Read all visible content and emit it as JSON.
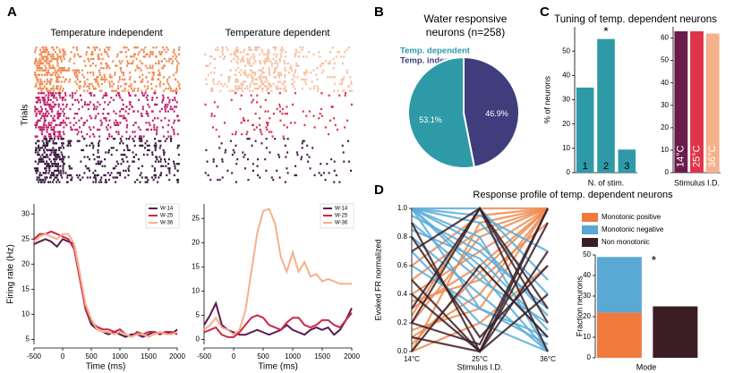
{
  "panel_labels": [
    "A",
    "B",
    "C",
    "D"
  ],
  "chart_data": [
    {
      "type": "raster",
      "title": "Temperature independent",
      "ylabel": "Trials",
      "colors": [
        "#f08a50",
        "#c0206a",
        "#3a1a40"
      ]
    },
    {
      "type": "raster",
      "title": "Temperature dependent",
      "colors": [
        "#f6c0a0",
        "#d83050",
        "#4a1a4a"
      ]
    },
    {
      "type": "line",
      "xlabel": "Time (ms)",
      "ylabel": "Firing rate (Hz)",
      "x": [
        -500,
        -400,
        -300,
        -200,
        -100,
        0,
        100,
        200,
        300,
        400,
        500,
        600,
        700,
        800,
        900,
        1000,
        1100,
        1200,
        1300,
        1400,
        1500,
        1600,
        1700,
        1800,
        1900,
        2000
      ],
      "xlim": [
        -500,
        2000
      ],
      "xticks": [
        -500,
        0,
        500,
        1000,
        1500,
        2000
      ],
      "ylim": [
        4,
        32
      ],
      "yticks": [
        5,
        10,
        15,
        20,
        25,
        30
      ],
      "series": [
        {
          "name": "W-14",
          "color": "#5a1a50",
          "values": [
            24,
            24.5,
            25,
            24.5,
            23.5,
            25,
            24.5,
            24,
            18,
            11,
            8,
            7,
            6.5,
            6,
            6.5,
            6,
            5.5,
            6,
            6,
            5.5,
            6,
            6.5,
            6,
            6.5,
            6,
            7
          ]
        },
        {
          "name": "W-25",
          "color": "#d0264a",
          "values": [
            25,
            26,
            26,
            26.5,
            26,
            25.5,
            25,
            23,
            17,
            11,
            8.5,
            7.5,
            7,
            7,
            6.5,
            7,
            6,
            5.5,
            6.5,
            6,
            6.5,
            6.5,
            6,
            6.5,
            6.5,
            6
          ]
        },
        {
          "name": "W-36",
          "color": "#f6b08a",
          "values": [
            24.5,
            25.5,
            26,
            25.5,
            25,
            26,
            26,
            24,
            18,
            12,
            9,
            7,
            6.5,
            6.5,
            6,
            6.5,
            6,
            5.5,
            6,
            6,
            5.5,
            6,
            6.5,
            6,
            6,
            6.5
          ]
        }
      ]
    },
    {
      "type": "line",
      "xlabel": "Time (ms)",
      "x": [
        -500,
        -400,
        -300,
        -200,
        -100,
        0,
        100,
        200,
        300,
        400,
        500,
        600,
        700,
        800,
        900,
        1000,
        1100,
        1200,
        1300,
        1400,
        1500,
        1600,
        1700,
        1800,
        1900,
        2000
      ],
      "xlim": [
        -500,
        2000
      ],
      "xticks": [
        -500,
        0,
        500,
        1000,
        1500,
        2000
      ],
      "ylim": [
        -1,
        28
      ],
      "yticks": [
        0,
        5,
        10,
        15,
        20,
        25
      ],
      "series": [
        {
          "name": "W-14",
          "color": "#5a1a50",
          "values": [
            3,
            5,
            7.5,
            3,
            2,
            1.5,
            1,
            1,
            1.5,
            2,
            1.5,
            1,
            1.5,
            2,
            3,
            2,
            1.5,
            1,
            2,
            2.5,
            2,
            2.5,
            1,
            2,
            4,
            6.5
          ]
        },
        {
          "name": "W-25",
          "color": "#d0264a",
          "values": [
            1.5,
            2,
            2.5,
            1,
            0.5,
            0.5,
            1.5,
            3,
            4.5,
            5,
            4.5,
            3,
            2.5,
            2,
            3.5,
            4.5,
            4.5,
            3,
            2.5,
            3,
            4,
            4,
            3,
            2.5,
            4,
            5.5
          ]
        },
        {
          "name": "W-36",
          "color": "#f6b08a",
          "values": [
            2,
            3,
            4.5,
            2.5,
            2,
            1,
            2,
            6,
            14,
            22,
            26.5,
            27,
            24,
            17,
            14,
            18,
            14,
            16,
            13,
            13.5,
            12,
            12.5,
            12,
            11.5,
            11.5,
            11.5
          ]
        }
      ]
    },
    {
      "type": "pie",
      "title": [
        "Water responsive",
        "neurons (n=258)"
      ],
      "labels": [
        "Temp. dependent",
        "Temp. independent"
      ],
      "values": [
        53.1,
        46.9
      ],
      "value_labels": [
        "53.1%",
        "46.9%"
      ],
      "colors": [
        "#2e9aa8",
        "#3f3d7c"
      ]
    },
    {
      "type": "bar",
      "title": "Tuning of temp. dependent neurons",
      "ylabel": "% of neurons",
      "xlabel": "N. of stim.",
      "annotation": "*",
      "categories": [
        "1",
        "2",
        "3"
      ],
      "values": [
        35,
        55,
        9.5
      ],
      "color": "#2e9aa8",
      "ylim": [
        0,
        60
      ],
      "yticks": [
        0,
        10,
        20,
        30,
        40,
        50
      ]
    },
    {
      "type": "bar",
      "xlabel": "Stimulus I.D.",
      "categories": [
        "14°C",
        "25°C",
        "36°C"
      ],
      "values": [
        63,
        63,
        62
      ],
      "colors": [
        "#6b1c4c",
        "#e0344a",
        "#f6b08a"
      ],
      "ylim": [
        0,
        65
      ],
      "yticks": [
        0,
        10,
        20,
        30,
        40,
        50,
        60
      ]
    },
    {
      "type": "parallel",
      "title": "Response profile of temp. dependent neurons",
      "ylabel": "Evoked FR normalized",
      "xlabel": "Stimulus I.D.",
      "categories": [
        "14°C",
        "25°C",
        "36°C"
      ],
      "ylim": [
        0,
        1
      ],
      "yticks": [
        {
          "value": 0,
          "label": "0.0"
        },
        0.2,
        0.4,
        0.6,
        0.8,
        {
          "value": 1,
          "label": "1.0"
        }
      ],
      "series": [
        {
          "name": "Monotonic positive",
          "color": "#f08a50",
          "values": [
            [
              0.05,
              0.55,
              1.0
            ],
            [
              0.1,
              0.4,
              1.0
            ],
            [
              0.2,
              0.8,
              1.0
            ],
            [
              0.3,
              0.6,
              1.0
            ],
            [
              0.0,
              0.9,
              1.0
            ],
            [
              0.15,
              0.3,
              1.0
            ],
            [
              0.4,
              0.7,
              1.0
            ],
            [
              0.25,
              1.0,
              1.0
            ],
            [
              0.5,
              0.85,
              1.0
            ],
            [
              0.0,
              0.2,
              0.6
            ],
            [
              0.35,
              0.5,
              0.9
            ],
            [
              0.6,
              0.95,
              1.0
            ]
          ]
        },
        {
          "name": "Monotonic negative",
          "color": "#5aabd6",
          "values": [
            [
              1.0,
              0.6,
              0.1
            ],
            [
              1.0,
              0.8,
              0.0
            ],
            [
              0.9,
              0.5,
              0.2
            ],
            [
              1.0,
              0.9,
              0.4
            ],
            [
              0.8,
              0.4,
              0.0
            ],
            [
              1.0,
              0.3,
              0.1
            ],
            [
              0.95,
              0.7,
              0.3
            ],
            [
              1.0,
              1.0,
              0.5
            ],
            [
              0.7,
              0.2,
              0.0
            ],
            [
              1.0,
              0.55,
              0.0
            ],
            [
              0.85,
              0.65,
              0.15
            ],
            [
              1.0,
              0.95,
              0.7
            ],
            [
              0.6,
              0.3,
              0.05
            ],
            [
              1.0,
              0.75,
              0.25
            ]
          ]
        },
        {
          "name": "Non monotonic",
          "color": "#3a1e24",
          "values": [
            [
              0.3,
              1.0,
              0.2
            ],
            [
              0.1,
              0.0,
              0.9
            ],
            [
              0.5,
              0.0,
              1.0
            ],
            [
              0.2,
              1.0,
              0.0
            ],
            [
              0.8,
              0.1,
              0.6
            ],
            [
              0.0,
              0.6,
              0.1
            ],
            [
              0.4,
              0.0,
              0.7
            ],
            [
              0.7,
              1.0,
              0.3
            ],
            [
              0.2,
              0.05,
              1.0
            ],
            [
              0.9,
              0.0,
              0.4
            ]
          ]
        }
      ]
    },
    {
      "type": "stacked",
      "ylabel": "Fraction neurons",
      "xlabel": "Mode",
      "annotation": "*",
      "categories": [
        null,
        null
      ],
      "ylim": [
        0,
        50
      ],
      "yticks": [
        0,
        10,
        20,
        30,
        40,
        50
      ],
      "series": [
        {
          "name": "Monotonic positive",
          "color": "#ef7a3c",
          "values": [
            22,
            null
          ]
        },
        {
          "name": "Monotonic negative",
          "color": "#5aa8d4",
          "values": [
            27,
            null
          ]
        },
        {
          "name": "Non monotonic",
          "color": "#3a1e24",
          "values": [
            null,
            25
          ]
        }
      ]
    }
  ]
}
